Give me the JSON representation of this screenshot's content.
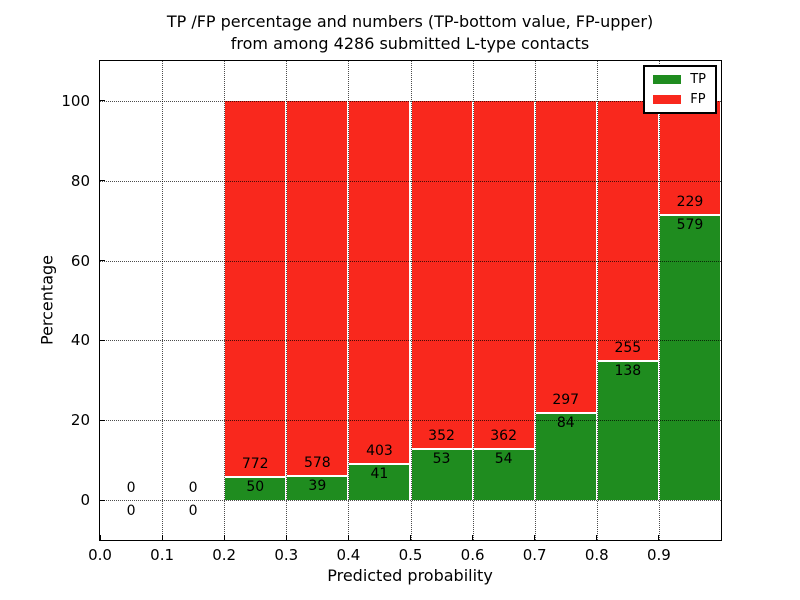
{
  "figure": {
    "title_line1": "TP /FP percentage and numbers (TP-bottom value, FP-upper)",
    "title_line2": "from among 4286 submitted L-type contacts"
  },
  "chart_data": {
    "type": "bar",
    "subtype": "stacked-percentage",
    "title": "TP /FP percentage and numbers (TP-bottom value, FP-upper)\nfrom among 4286 submitted L-type contacts",
    "xlabel": "Predicted probability",
    "ylabel": "Percentage",
    "xlim": [
      0.0,
      1.0
    ],
    "ylim": [
      -10,
      110
    ],
    "xticks": [
      "0.0",
      "0.1",
      "0.2",
      "0.3",
      "0.4",
      "0.5",
      "0.6",
      "0.7",
      "0.8",
      "0.9"
    ],
    "yticks": [
      "0",
      "20",
      "40",
      "60",
      "80",
      "100"
    ],
    "grid": true,
    "grid_style": "dotted",
    "total_contacts": 4286,
    "legend": {
      "position": "upper right",
      "entries": [
        {
          "label": "TP",
          "color": "#1f8c1f"
        },
        {
          "label": "FP",
          "color": "#f9281d"
        }
      ]
    },
    "bar_colors": {
      "tp": "#1f8c1f",
      "fp": "#f9281d"
    },
    "note": "Each bar spans 0.1 of predicted probability; green TP bottom segment and red FP upper segment sum to 100%; numeric labels are raw counts (TP below boundary, FP above boundary).",
    "bins": [
      {
        "range": [
          0.0,
          0.1
        ],
        "tp": 0,
        "fp": 0
      },
      {
        "range": [
          0.1,
          0.2
        ],
        "tp": 0,
        "fp": 0
      },
      {
        "range": [
          0.2,
          0.3
        ],
        "tp": 50,
        "fp": 772
      },
      {
        "range": [
          0.3,
          0.4
        ],
        "tp": 39,
        "fp": 578
      },
      {
        "range": [
          0.4,
          0.5
        ],
        "tp": 41,
        "fp": 403
      },
      {
        "range": [
          0.5,
          0.6
        ],
        "tp": 53,
        "fp": 352
      },
      {
        "range": [
          0.6,
          0.7
        ],
        "tp": 54,
        "fp": 362
      },
      {
        "range": [
          0.7,
          0.8
        ],
        "tp": 84,
        "fp": 297
      },
      {
        "range": [
          0.8,
          0.9
        ],
        "tp": 138,
        "fp": 255
      },
      {
        "range": [
          0.9,
          1.0
        ],
        "tp": 579,
        "fp": 229
      }
    ]
  }
}
